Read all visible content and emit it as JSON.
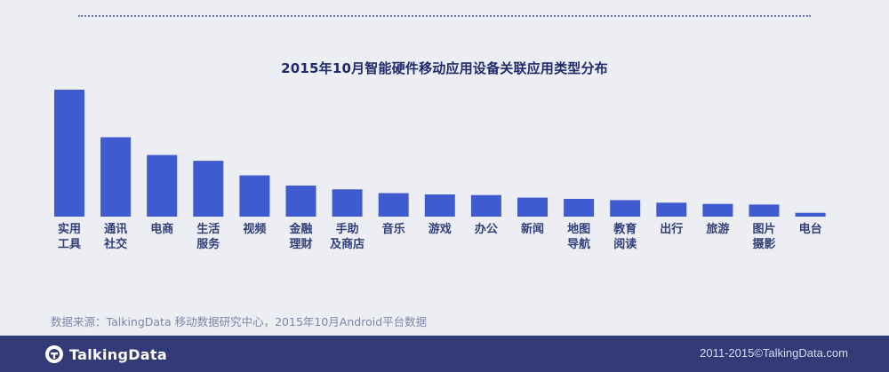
{
  "chart_data": {
    "type": "bar",
    "title": "2015年10月智能硬件移动应用设备关联应用类型分布",
    "categories": [
      "实用\n工具",
      "通讯\n社交",
      "电商",
      "生活\n服务",
      "视频",
      "金融\n理财",
      "手助\n及商店",
      "音乐",
      "游戏",
      "办公",
      "新闻",
      "地图\n导航",
      "教育\n阅读",
      "出行",
      "旅游",
      "图片\n摄影",
      "电台"
    ],
    "values": [
      100,
      62.5,
      48.5,
      44,
      32.5,
      24.5,
      21.5,
      18.5,
      17.5,
      17,
      15,
      14,
      13,
      11,
      10,
      9.5,
      3
    ],
    "ylim": [
      0,
      100
    ],
    "xlabel": "",
    "ylabel": "",
    "bar_color": "#3f5bcf",
    "label_color": "#33407a"
  },
  "source_note": "数据来源：TalkingData 移动数据研究中心，2015年10月Android平台数据",
  "footer": {
    "logo_text": "TalkingData",
    "copyright": "2011-2015©TalkingData.com",
    "background": "#323a78"
  }
}
